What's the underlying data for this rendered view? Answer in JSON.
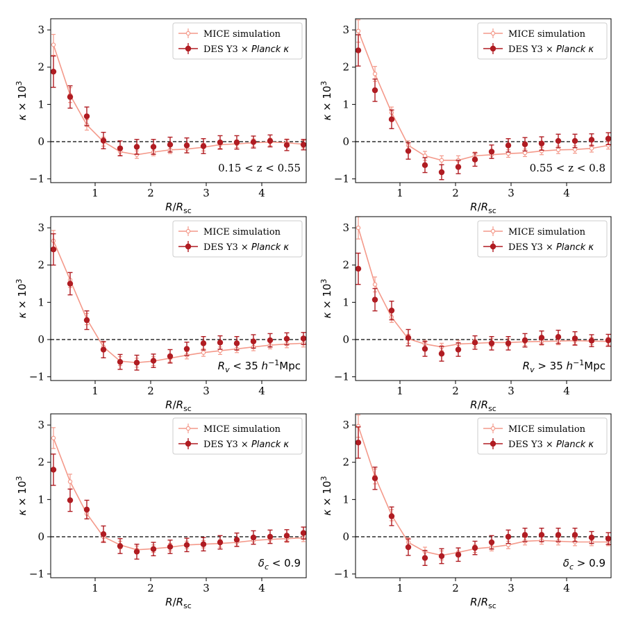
{
  "figure": {
    "x_tick_labels": [
      "1",
      "2",
      "3",
      "4"
    ],
    "y_tick_labels": [
      "−1",
      "0",
      "1",
      "2",
      "3"
    ],
    "colors": {
      "mice": "#f4998a",
      "des": "#b01c22",
      "zero_line": "#000000"
    }
  },
  "chart_data": [
    {
      "type": "line",
      "panel": "top-left",
      "annotation": "0.15 < z < 0.55",
      "legend": {
        "mice": "MICE simulation",
        "des_main": "DES Y3 × ",
        "des_italic": "Planck κ",
        "placement": "top-right"
      },
      "xlabel": "R/R_sc",
      "ylabel": "κ × 10^3",
      "xlim": [
        0.2,
        4.8
      ],
      "ylim": [
        -1.1,
        3.3
      ],
      "x": [
        0.25,
        0.55,
        0.85,
        1.15,
        1.45,
        1.75,
        2.05,
        2.35,
        2.65,
        2.95,
        3.25,
        3.55,
        3.85,
        4.15,
        4.45,
        4.75
      ],
      "series": [
        {
          "name": "MICE simulation",
          "values": [
            2.6,
            1.25,
            0.45,
            0.0,
            -0.27,
            -0.35,
            -0.28,
            -0.22,
            -0.2,
            -0.15,
            -0.08,
            -0.06,
            -0.03,
            -0.01,
            -0.03,
            -0.07
          ],
          "errors": [
            0.28,
            0.2,
            0.14,
            0.12,
            0.1,
            0.1,
            0.1,
            0.1,
            0.1,
            0.1,
            0.1,
            0.1,
            0.1,
            0.1,
            0.1,
            0.1
          ]
        },
        {
          "name": "DES Y3 × Planck κ",
          "values": [
            1.88,
            1.2,
            0.68,
            0.03,
            -0.18,
            -0.14,
            -0.14,
            -0.08,
            -0.1,
            -0.12,
            -0.02,
            -0.02,
            -0.01,
            0.02,
            -0.09,
            -0.08
          ],
          "errors": [
            0.42,
            0.3,
            0.25,
            0.22,
            0.2,
            0.2,
            0.2,
            0.2,
            0.2,
            0.2,
            0.18,
            0.18,
            0.16,
            0.16,
            0.15,
            0.14
          ]
        }
      ]
    },
    {
      "type": "line",
      "panel": "top-right",
      "annotation": "0.55 < z < 0.8",
      "legend": {
        "mice": "MICE simulation",
        "des_main": "DES Y3 × ",
        "des_italic": "Planck κ",
        "placement": "top-right"
      },
      "xlabel": "R/R_sc",
      "ylabel": "κ × 10^3",
      "xlim": [
        0.2,
        4.8
      ],
      "ylim": [
        -1.1,
        3.3
      ],
      "x": [
        0.25,
        0.55,
        0.85,
        1.15,
        1.45,
        1.75,
        2.05,
        2.35,
        2.65,
        2.95,
        3.25,
        3.55,
        3.85,
        4.15,
        4.45,
        4.75
      ],
      "series": [
        {
          "name": "MICE simulation",
          "values": [
            2.97,
            1.82,
            0.78,
            -0.1,
            -0.38,
            -0.5,
            -0.5,
            -0.38,
            -0.35,
            -0.32,
            -0.3,
            -0.25,
            -0.22,
            -0.21,
            -0.18,
            -0.1
          ],
          "errors": [
            0.3,
            0.2,
            0.15,
            0.12,
            0.12,
            0.12,
            0.12,
            0.1,
            0.1,
            0.1,
            0.1,
            0.1,
            0.1,
            0.1,
            0.1,
            0.1
          ]
        },
        {
          "name": "DES Y3 × Planck κ",
          "values": [
            2.45,
            1.38,
            0.6,
            -0.25,
            -0.63,
            -0.82,
            -0.68,
            -0.48,
            -0.27,
            -0.1,
            -0.07,
            -0.05,
            0.02,
            0.02,
            0.05,
            0.08
          ],
          "errors": [
            0.42,
            0.3,
            0.25,
            0.22,
            0.2,
            0.2,
            0.18,
            0.18,
            0.18,
            0.18,
            0.18,
            0.18,
            0.18,
            0.18,
            0.16,
            0.16
          ]
        }
      ]
    },
    {
      "type": "line",
      "panel": "middle-left",
      "annotation_main": "R",
      "annotation_sub": "v",
      "annotation_mid": " < 35 ",
      "annotation_h": "h",
      "annotation_sup": "−1",
      "annotation_end": "Mpc",
      "legend": {
        "mice": "MICE simulation",
        "des_main": "DES Y3 × ",
        "des_italic": "Planck κ",
        "placement": "top-right"
      },
      "xlabel": "R/R_sc",
      "ylabel": "κ × 10^3",
      "xlim": [
        0.2,
        4.8
      ],
      "ylim": [
        -1.1,
        3.3
      ],
      "x": [
        0.25,
        0.55,
        0.85,
        1.15,
        1.45,
        1.75,
        2.05,
        2.35,
        2.65,
        2.95,
        3.25,
        3.55,
        3.85,
        4.15,
        4.45,
        4.75
      ],
      "series": [
        {
          "name": "MICE simulation",
          "values": [
            2.65,
            1.6,
            0.55,
            -0.2,
            -0.58,
            -0.62,
            -0.58,
            -0.5,
            -0.42,
            -0.35,
            -0.3,
            -0.25,
            -0.2,
            -0.15,
            -0.12,
            -0.1
          ],
          "errors": [
            0.28,
            0.2,
            0.15,
            0.12,
            0.12,
            0.12,
            0.12,
            0.1,
            0.1,
            0.1,
            0.1,
            0.1,
            0.1,
            0.1,
            0.1,
            0.1
          ]
        },
        {
          "name": "DES Y3 × Planck κ",
          "values": [
            2.42,
            1.5,
            0.52,
            -0.27,
            -0.6,
            -0.62,
            -0.57,
            -0.45,
            -0.25,
            -0.1,
            -0.08,
            -0.1,
            -0.05,
            -0.02,
            0.02,
            0.03
          ],
          "errors": [
            0.42,
            0.3,
            0.25,
            0.22,
            0.2,
            0.2,
            0.18,
            0.18,
            0.18,
            0.18,
            0.18,
            0.18,
            0.18,
            0.18,
            0.16,
            0.16
          ]
        }
      ]
    },
    {
      "type": "line",
      "panel": "middle-right",
      "annotation_main": "R",
      "annotation_sub": "v",
      "annotation_mid": " > 35 ",
      "annotation_h": "h",
      "annotation_sup": "−1",
      "annotation_end": "Mpc",
      "legend": {
        "mice": "MICE simulation",
        "des_main": "DES Y3 × ",
        "des_italic": "Planck κ",
        "placement": "top-right"
      },
      "xlabel": "R/R_sc",
      "ylabel": "κ × 10^3",
      "xlim": [
        0.2,
        4.8
      ],
      "ylim": [
        -1.1,
        3.3
      ],
      "x": [
        0.25,
        0.55,
        0.85,
        1.15,
        1.45,
        1.75,
        2.05,
        2.35,
        2.65,
        2.95,
        3.25,
        3.55,
        3.85,
        4.15,
        4.45,
        4.75
      ],
      "series": [
        {
          "name": "MICE simulation",
          "values": [
            3.0,
            1.48,
            0.6,
            0.02,
            -0.12,
            -0.2,
            -0.12,
            -0.1,
            -0.08,
            -0.08,
            -0.06,
            -0.05,
            -0.04,
            -0.03,
            -0.04,
            -0.05
          ],
          "errors": [
            0.3,
            0.2,
            0.14,
            0.12,
            0.1,
            0.1,
            0.1,
            0.1,
            0.1,
            0.1,
            0.1,
            0.1,
            0.1,
            0.1,
            0.1,
            0.1
          ]
        },
        {
          "name": "DES Y3 × Planck κ",
          "values": [
            1.9,
            1.07,
            0.78,
            0.05,
            -0.25,
            -0.38,
            -0.27,
            -0.08,
            -0.1,
            -0.1,
            -0.02,
            0.05,
            0.07,
            0.03,
            -0.03,
            -0.02
          ],
          "errors": [
            0.42,
            0.3,
            0.25,
            0.22,
            0.2,
            0.2,
            0.18,
            0.18,
            0.18,
            0.18,
            0.18,
            0.18,
            0.18,
            0.18,
            0.16,
            0.16
          ]
        }
      ]
    },
    {
      "type": "line",
      "panel": "bottom-left",
      "annotation_main": "δ",
      "annotation_sub": "c",
      "annotation_end": " < 0.9",
      "legend": {
        "mice": "MICE simulation",
        "des_main": "DES Y3 × ",
        "des_italic": "Planck κ",
        "placement": "top-right"
      },
      "xlabel": "R/R_sc",
      "ylabel": "κ × 10^3",
      "xlim": [
        0.2,
        4.8
      ],
      "ylim": [
        -1.1,
        3.3
      ],
      "x": [
        0.25,
        0.55,
        0.85,
        1.15,
        1.45,
        1.75,
        2.05,
        2.35,
        2.65,
        2.95,
        3.25,
        3.55,
        3.85,
        4.15,
        4.45,
        4.75
      ],
      "series": [
        {
          "name": "MICE simulation",
          "values": [
            2.65,
            1.48,
            0.62,
            0.0,
            -0.22,
            -0.35,
            -0.32,
            -0.28,
            -0.22,
            -0.2,
            -0.18,
            -0.15,
            -0.1,
            -0.07,
            -0.05,
            -0.03
          ],
          "errors": [
            0.28,
            0.2,
            0.14,
            0.12,
            0.1,
            0.1,
            0.1,
            0.1,
            0.1,
            0.1,
            0.1,
            0.1,
            0.1,
            0.1,
            0.1,
            0.1
          ]
        },
        {
          "name": "DES Y3 × Planck κ",
          "values": [
            1.8,
            0.98,
            0.73,
            0.07,
            -0.25,
            -0.4,
            -0.33,
            -0.27,
            -0.22,
            -0.2,
            -0.15,
            -0.08,
            -0.02,
            0.0,
            0.03,
            0.1
          ],
          "errors": [
            0.42,
            0.3,
            0.25,
            0.22,
            0.2,
            0.2,
            0.18,
            0.18,
            0.18,
            0.18,
            0.18,
            0.18,
            0.18,
            0.18,
            0.16,
            0.16
          ]
        }
      ]
    },
    {
      "type": "line",
      "panel": "bottom-right",
      "annotation_main": "δ",
      "annotation_sub": "c",
      "annotation_end": " > 0.9",
      "legend": {
        "mice": "MICE simulation",
        "des_main": "DES Y3 × ",
        "des_italic": "Planck κ",
        "placement": "top-right"
      },
      "xlabel": "R/R_sc",
      "ylabel": "κ × 10^3",
      "xlim": [
        0.2,
        4.8
      ],
      "ylim": [
        -1.1,
        3.3
      ],
      "x": [
        0.25,
        0.55,
        0.85,
        1.15,
        1.45,
        1.75,
        2.05,
        2.35,
        2.65,
        2.95,
        3.25,
        3.55,
        3.85,
        4.15,
        4.45,
        4.75
      ],
      "series": [
        {
          "name": "MICE simulation",
          "values": [
            2.97,
            1.62,
            0.58,
            -0.15,
            -0.4,
            -0.5,
            -0.42,
            -0.32,
            -0.28,
            -0.22,
            -0.12,
            -0.1,
            -0.12,
            -0.14,
            -0.14,
            -0.14
          ],
          "errors": [
            0.3,
            0.2,
            0.15,
            0.12,
            0.12,
            0.12,
            0.12,
            0.1,
            0.1,
            0.1,
            0.1,
            0.1,
            0.1,
            0.1,
            0.1,
            0.1
          ]
        },
        {
          "name": "DES Y3 × Planck κ",
          "values": [
            2.53,
            1.57,
            0.55,
            -0.28,
            -0.57,
            -0.52,
            -0.48,
            -0.3,
            -0.15,
            0.0,
            0.05,
            0.05,
            0.05,
            0.05,
            -0.02,
            -0.05
          ],
          "errors": [
            0.42,
            0.3,
            0.25,
            0.22,
            0.2,
            0.2,
            0.18,
            0.18,
            0.18,
            0.18,
            0.18,
            0.18,
            0.18,
            0.18,
            0.16,
            0.16
          ]
        }
      ]
    }
  ]
}
